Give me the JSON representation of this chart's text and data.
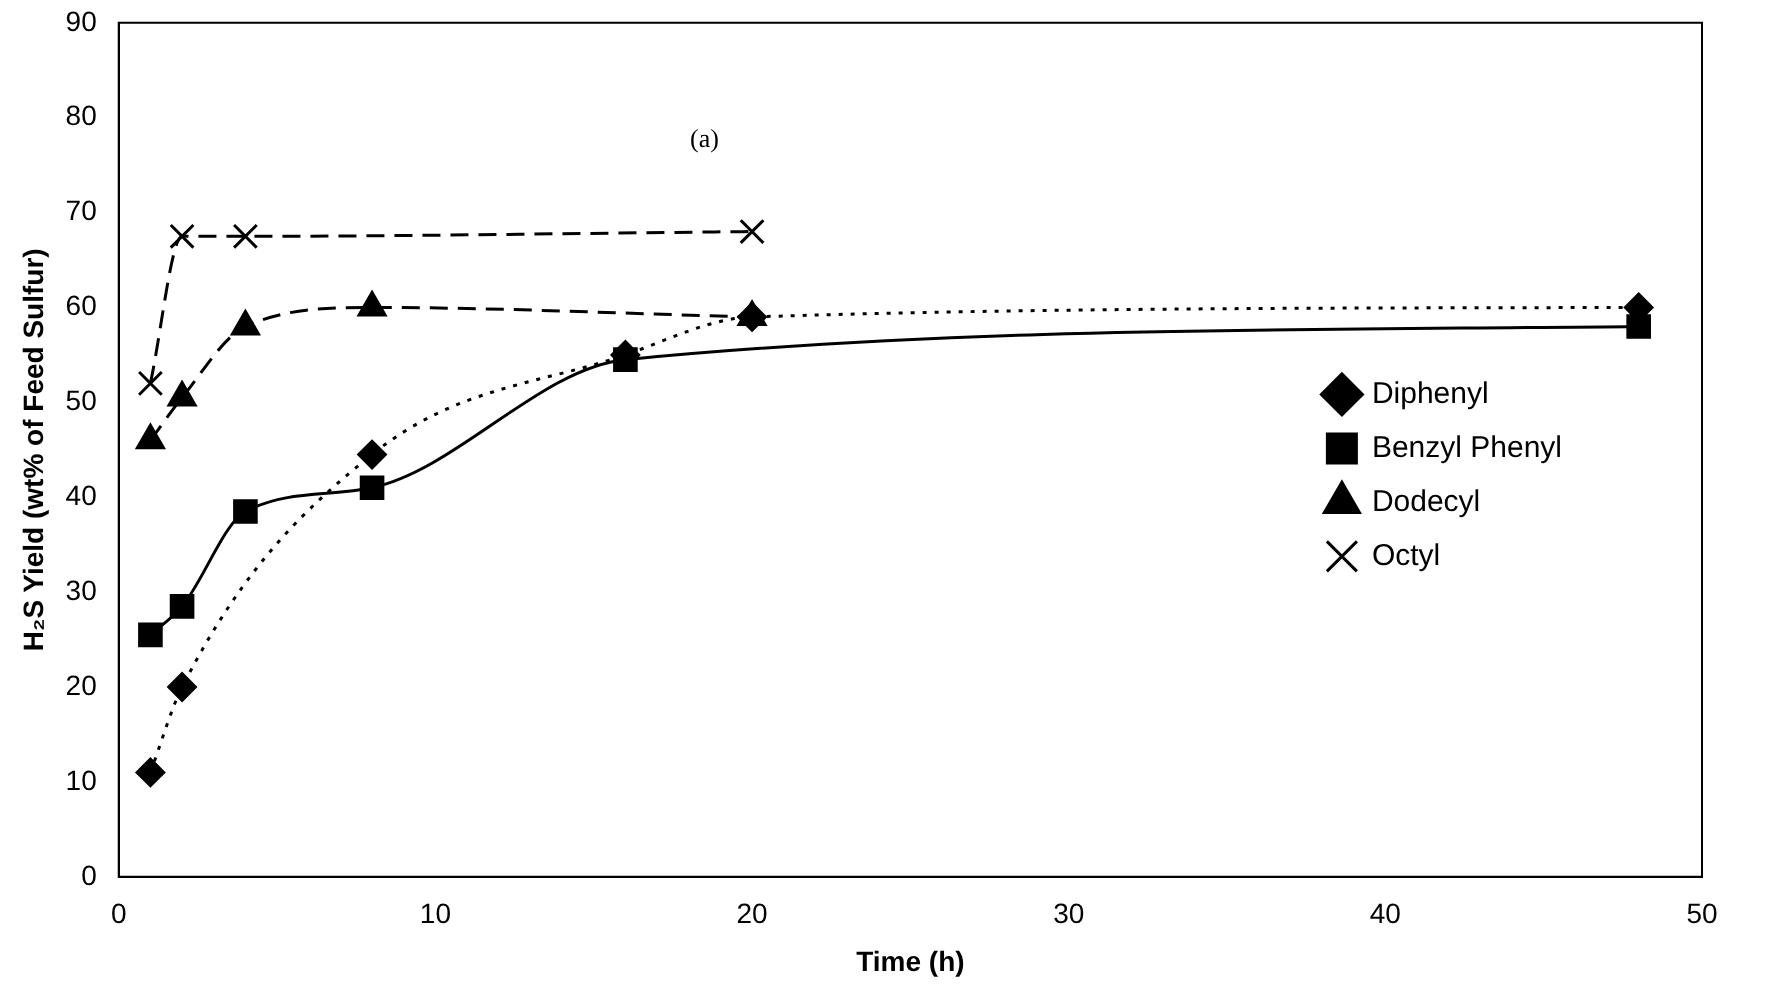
{
  "chart_data": {
    "type": "line",
    "xlabel": "Time (h)",
    "ylabel": "H₂S Yield (wt% of Feed Sulfur)",
    "annotations": [
      "(a)"
    ],
    "xlim": [
      0,
      50
    ],
    "xticks": [
      0,
      10,
      20,
      30,
      40,
      50
    ],
    "ylim": [
      0,
      90
    ],
    "yticks": [
      0,
      10,
      20,
      30,
      40,
      50,
      60,
      70,
      80,
      90
    ],
    "grid": false,
    "legend": "right",
    "series": [
      {
        "name": "Diphenyl",
        "color": "#000000",
        "marker": "diamond",
        "line_style": "dotted",
        "x": [
          1,
          2,
          8,
          16,
          20,
          48
        ],
        "values": [
          11,
          20,
          44.5,
          55,
          59,
          60
        ]
      },
      {
        "name": "Benzyl Phenyl",
        "color": "#000000",
        "marker": "square",
        "line_style": "solid",
        "x": [
          1,
          2,
          4,
          8,
          16,
          48
        ],
        "values": [
          25.5,
          28.5,
          38.5,
          41,
          54.5,
          58
        ]
      },
      {
        "name": "Dodecyl",
        "color": "#000000",
        "marker": "triangle",
        "line_style": "dashed",
        "x": [
          1,
          2,
          4,
          8,
          20
        ],
        "values": [
          46,
          50.5,
          58,
          60,
          59
        ]
      },
      {
        "name": "Octyl",
        "color": "#000000",
        "marker": "cross",
        "line_style": "dashed",
        "x": [
          1,
          2,
          4,
          20
        ],
        "values": [
          52,
          67.5,
          67.5,
          68
        ]
      }
    ]
  }
}
